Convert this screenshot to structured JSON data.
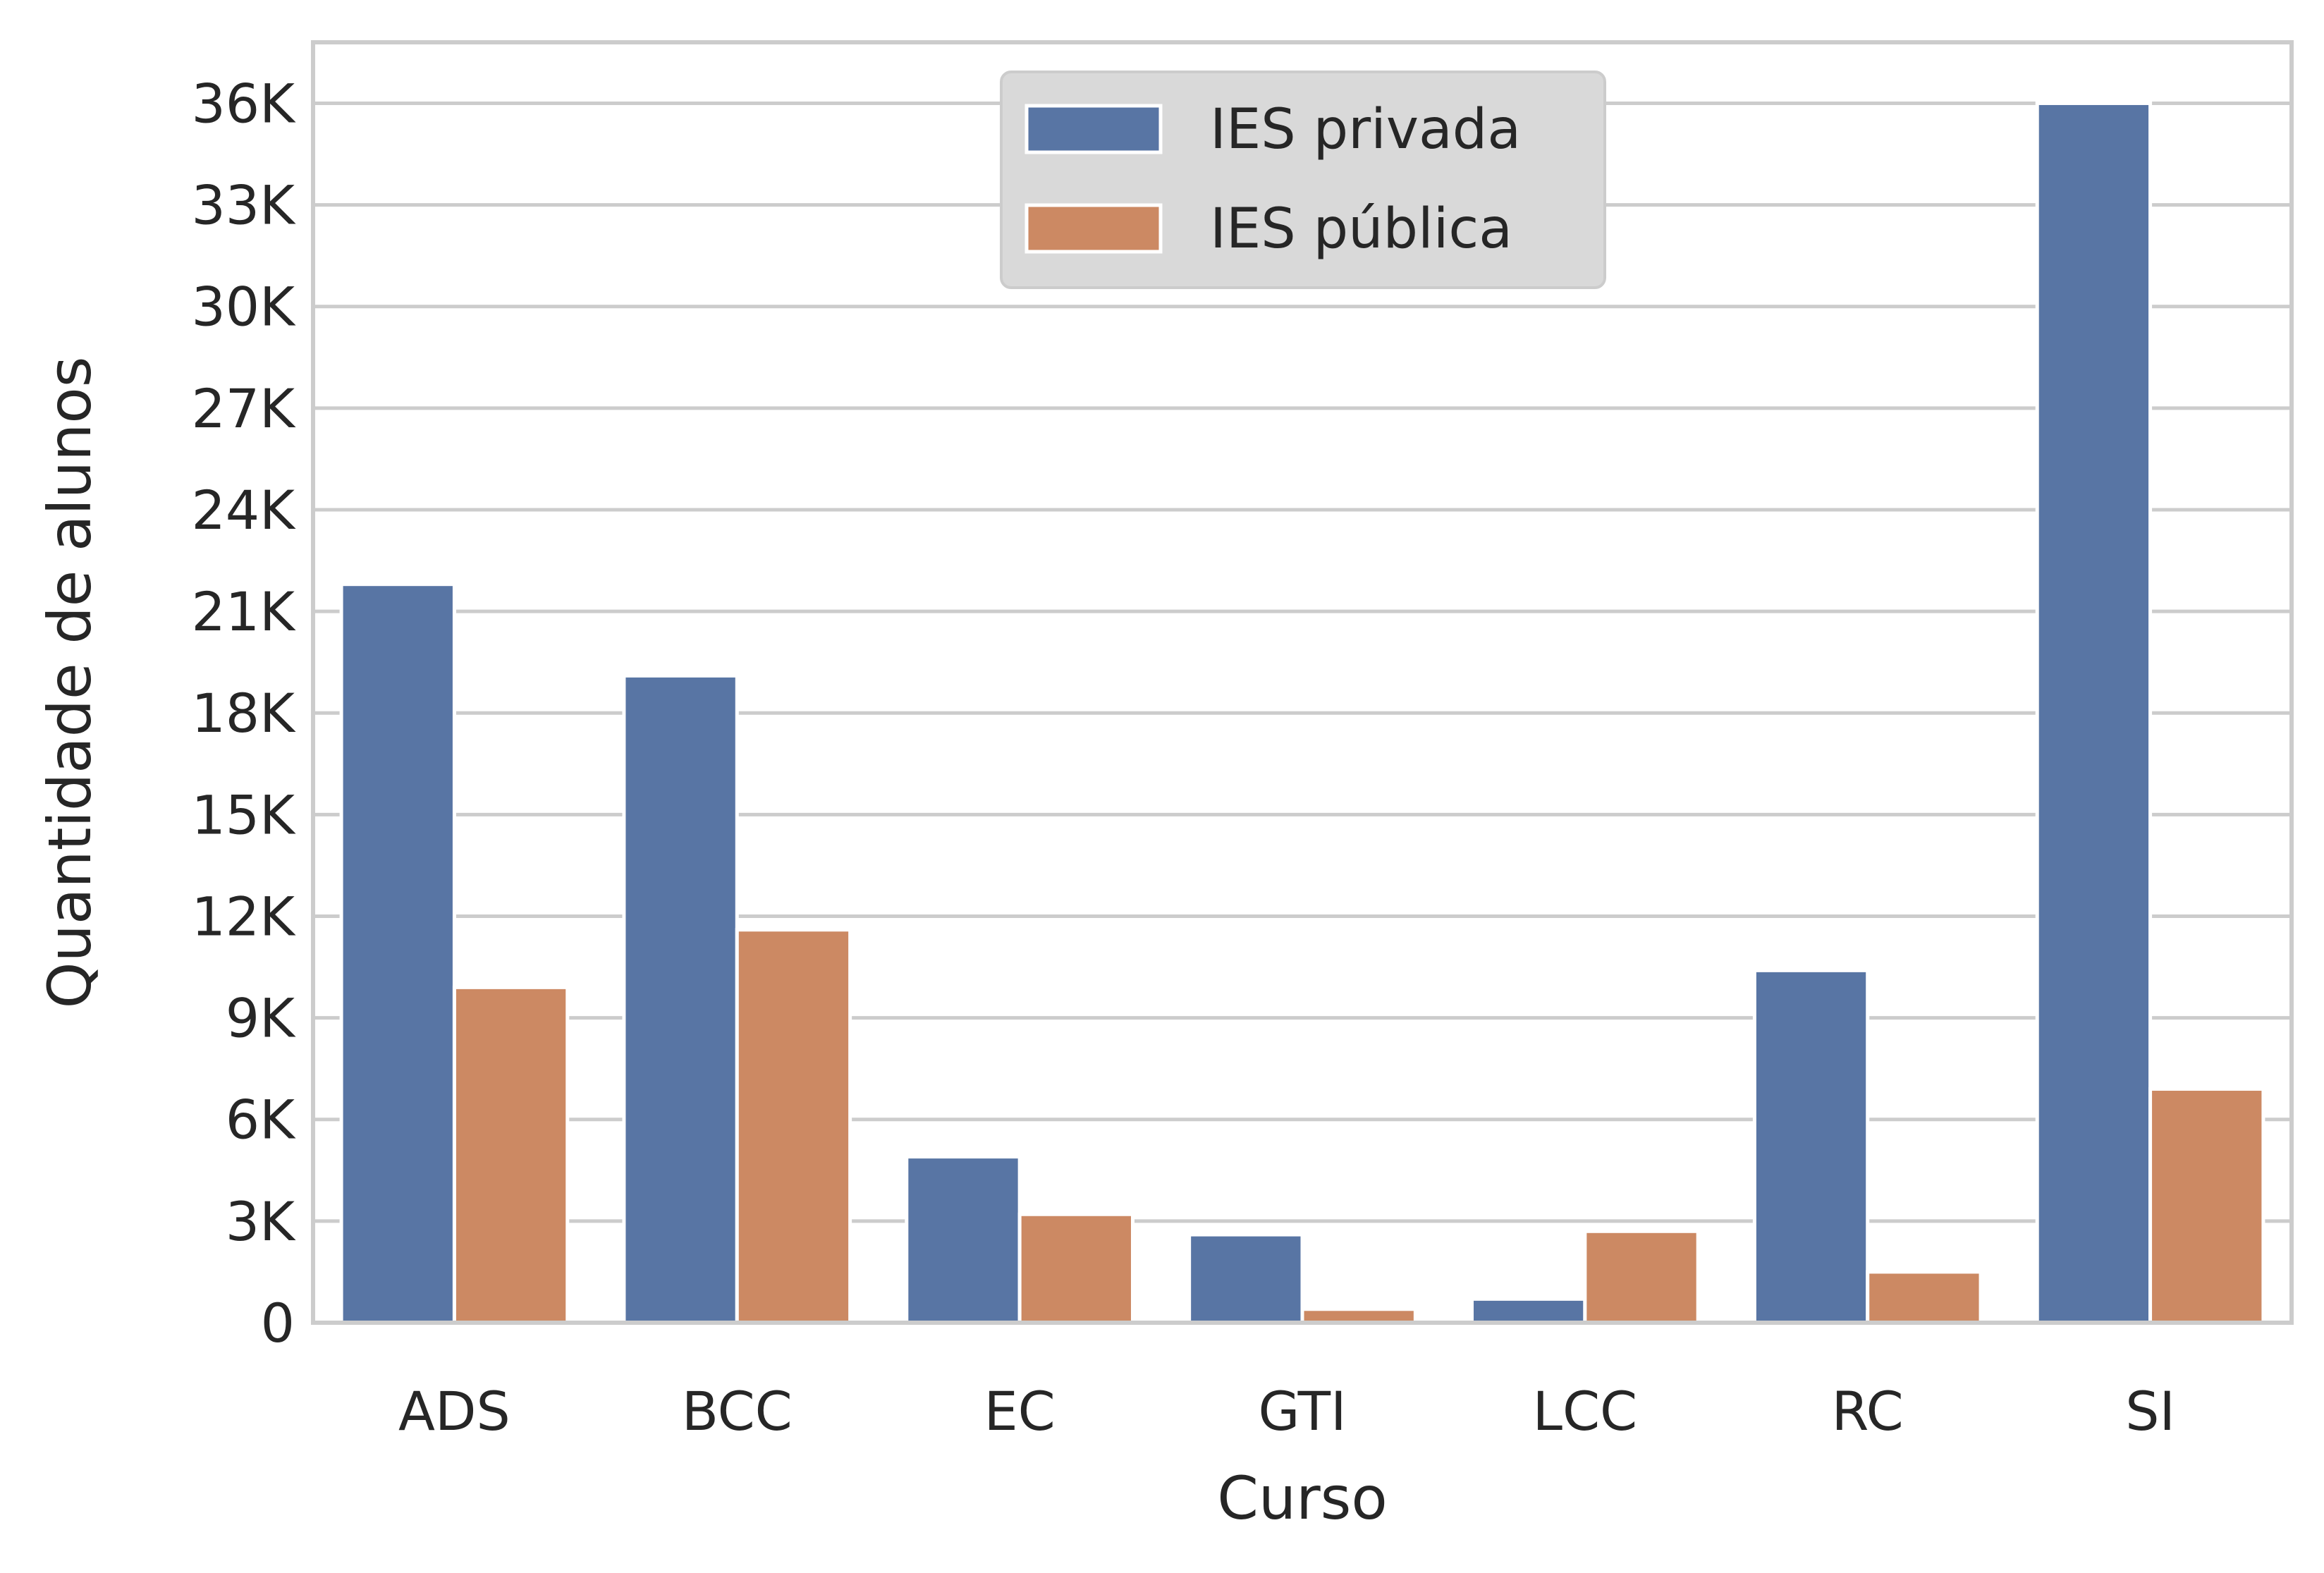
{
  "chart_data": {
    "type": "bar",
    "xlabel": "Curso",
    "ylabel": "Quantidade de alunos",
    "categories": [
      "ADS",
      "BCC",
      "EC",
      "GTI",
      "LCC",
      "RC",
      "SI"
    ],
    "series": [
      {
        "name": "IES privada",
        "color": "#5875a4",
        "values": [
          21800,
          19100,
          4900,
          2600,
          700,
          10400,
          36000
        ]
      },
      {
        "name": "IES pública",
        "color": "#cc8963",
        "values": [
          9900,
          11600,
          3200,
          400,
          2700,
          1500,
          6900
        ]
      }
    ],
    "ylim": [
      0,
      37800
    ],
    "yticks": [
      0,
      3000,
      6000,
      9000,
      12000,
      15000,
      18000,
      21000,
      24000,
      27000,
      30000,
      33000,
      36000
    ],
    "ytick_labels": [
      "0",
      "3K",
      "6K",
      "9K",
      "12K",
      "15K",
      "18K",
      "21K",
      "24K",
      "27K",
      "30K",
      "33K",
      "36K"
    ],
    "grid": "horizontal",
    "legend_position": "top-center"
  }
}
